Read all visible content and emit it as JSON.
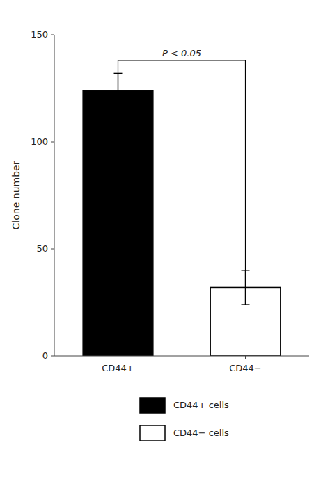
{
  "chart_data": {
    "type": "bar",
    "categories": [
      "CD44+",
      "CD44−"
    ],
    "series": [
      {
        "name": "CD44+ cells",
        "color": "#000000",
        "values": [
          124,
          null
        ],
        "errors": [
          8,
          null
        ]
      },
      {
        "name": "CD44− cells",
        "color": "#ffffff",
        "values": [
          null,
          32
        ],
        "errors": [
          null,
          8
        ]
      }
    ],
    "ylabel": "Clone number",
    "ylim": [
      0,
      150
    ],
    "yticks": [
      0,
      50,
      100,
      150
    ],
    "annotations": [
      {
        "text": "P < 0.05",
        "y": 138
      }
    ],
    "grid": false,
    "legend": "bottom"
  }
}
